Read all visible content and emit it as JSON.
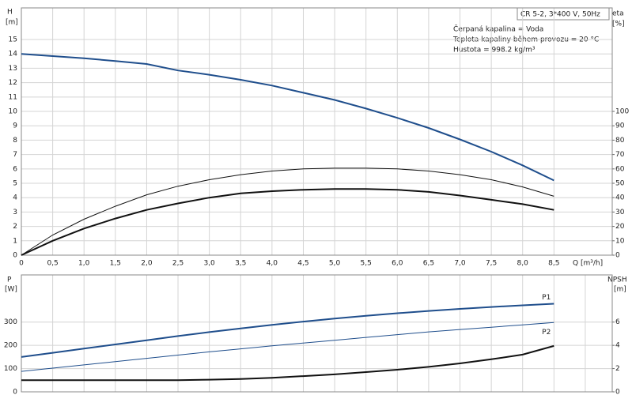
{
  "chart_data": [
    {
      "type": "line",
      "annotations": [
        "CR 5-2, 3*400 V, 50Hz",
        "Čerpaná kapalina = Voda",
        "Teplota kapaliny během provozu = 20 °C",
        "Hustota = 998.2 kg/m³"
      ],
      "y_label": "H",
      "y_unit": "[m]",
      "y2_label": "eta",
      "y2_unit": "[%]",
      "x_label": "Q [m³/h]",
      "x": [
        0,
        0.5,
        1,
        1.5,
        2,
        2.5,
        3,
        3.5,
        4,
        4.5,
        5,
        5.5,
        6,
        6.5,
        7,
        7.5,
        8,
        8.5
      ],
      "xlim": [
        0,
        9.43
      ],
      "xticks": [
        0,
        {
          "value": 0.5,
          "label": "0,5"
        },
        {
          "value": 1,
          "label": "1,0"
        },
        {
          "value": 1.5,
          "label": "1,5"
        },
        {
          "value": 2,
          "label": "2,0"
        },
        {
          "value": 2.5,
          "label": "2,5"
        },
        {
          "value": 3,
          "label": "3,0"
        },
        {
          "value": 3.5,
          "label": "3,5"
        },
        {
          "value": 4,
          "label": "4,0"
        },
        {
          "value": 4.5,
          "label": "4,5"
        },
        {
          "value": 5,
          "label": "5,0"
        },
        {
          "value": 5.5,
          "label": "5,5"
        },
        {
          "value": 6,
          "label": "6,0"
        },
        {
          "value": 6.5,
          "label": "6,5"
        },
        {
          "value": 7,
          "label": "7,0"
        },
        {
          "value": 7.5,
          "label": "7,5"
        },
        {
          "value": 8,
          "label": "8,0"
        },
        {
          "value": 8.5,
          "label": "8,5"
        }
      ],
      "ylim": [
        0,
        17.2
      ],
      "yticks": [
        0,
        1,
        2,
        3,
        4,
        5,
        6,
        7,
        8,
        9,
        10,
        11,
        12,
        13,
        14,
        15
      ],
      "y2lim": [
        0,
        172
      ],
      "y2ticks": [
        0,
        10,
        20,
        30,
        40,
        50,
        60,
        70,
        80,
        90,
        100
      ],
      "grid": true,
      "series": [
        {
          "color": "#1f4e8c",
          "width": 2,
          "values": [
            14.0,
            13.85,
            13.7,
            13.5,
            13.3,
            12.85,
            12.55,
            12.2,
            11.8,
            11.3,
            10.8,
            10.2,
            9.55,
            8.85,
            8.05,
            7.2,
            6.25,
            5.2
          ]
        },
        {
          "color": "#111111",
          "width": 1,
          "axis": "y2",
          "values": [
            0,
            14,
            25,
            34,
            42,
            48,
            52.5,
            56,
            58.5,
            60,
            60.5,
            60.5,
            60,
            58.5,
            56,
            52.5,
            47.5,
            41
          ]
        },
        {
          "color": "#111111",
          "width": 2,
          "axis": "y2",
          "values": [
            0,
            10,
            18.5,
            25.5,
            31.5,
            36,
            40,
            43,
            44.5,
            45.5,
            46,
            46,
            45.5,
            44,
            41.5,
            38.5,
            35.5,
            31.5
          ]
        }
      ]
    },
    {
      "type": "line",
      "y_label": "P",
      "y_unit": "[W]",
      "y2_label": "NPSH",
      "y2_unit": "[m]",
      "x": [
        0,
        0.5,
        1,
        1.5,
        2,
        2.5,
        3,
        3.5,
        4,
        4.5,
        5,
        5.5,
        6,
        6.5,
        7,
        7.5,
        8,
        8.5
      ],
      "xlim": [
        0,
        9.43
      ],
      "xgrid": [
        0,
        0.5,
        1,
        1.5,
        2,
        2.5,
        3,
        3.5,
        4,
        4.5,
        5,
        5.5,
        6,
        6.5,
        7,
        7.5,
        8,
        8.5,
        9
      ],
      "ylim": [
        0,
        503
      ],
      "yticks": [
        0,
        100,
        200,
        300
      ],
      "y2lim": [
        0,
        10.06
      ],
      "y2ticks": [
        0,
        2,
        4,
        6
      ],
      "grid": true,
      "series": [
        {
          "name": "P1",
          "color": "#1f4e8c",
          "width": 2,
          "values": [
            150,
            168,
            186,
            204,
            222,
            240,
            257,
            273,
            288,
            302,
            315,
            327,
            338,
            348,
            357,
            365,
            372,
            379
          ]
        },
        {
          "name": "P2",
          "color": "#1f4e8c",
          "width": 1,
          "values": [
            88,
            102,
            116,
            130,
            144,
            158,
            172,
            185,
            198,
            210,
            222,
            234,
            246,
            258,
            268,
            278,
            288,
            298
          ]
        },
        {
          "color": "#111111",
          "width": 2,
          "axis": "y2",
          "values": [
            1.0,
            1.0,
            1.0,
            1.0,
            1.0,
            1.0,
            1.05,
            1.1,
            1.2,
            1.35,
            1.5,
            1.7,
            1.9,
            2.15,
            2.45,
            2.8,
            3.2,
            3.95
          ]
        }
      ]
    }
  ]
}
